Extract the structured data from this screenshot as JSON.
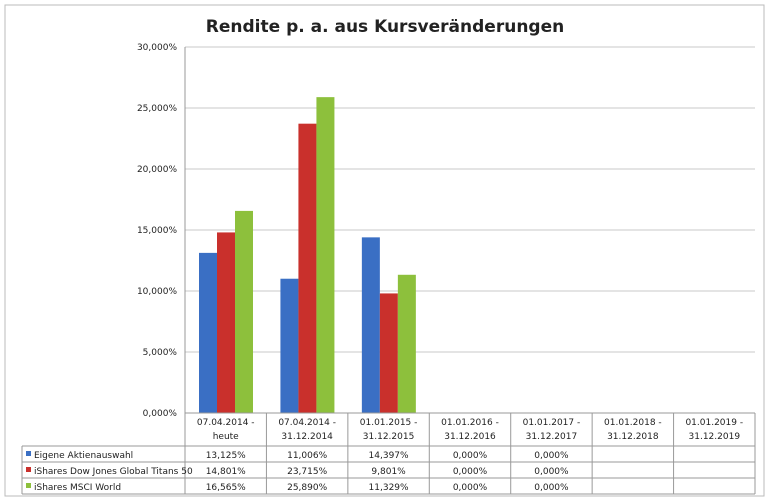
{
  "chart_data": {
    "type": "bar",
    "title": "Rendite p. a. aus Kursveränderungen",
    "categories": [
      [
        "07.04.2014 -",
        "heute"
      ],
      [
        "07.04.2014 -",
        "31.12.2014"
      ],
      [
        "01.01.2015 -",
        "31.12.2015"
      ],
      [
        "01.01.2016 -",
        "31.12.2016"
      ],
      [
        "01.01.2017 -",
        "31.12.2017"
      ],
      [
        "01.01.2018 -",
        "31.12.2018"
      ],
      [
        "01.01.2019 -",
        "31.12.2019"
      ]
    ],
    "series": [
      {
        "name": "Eigene Aktienauswahl",
        "color": "#3a6fc4",
        "values": [
          13.125,
          11.006,
          14.397,
          0,
          0,
          null,
          null
        ],
        "labels": [
          "13,125%",
          "11,006%",
          "14,397%",
          "0,000%",
          "0,000%",
          "",
          ""
        ]
      },
      {
        "name": "iShares Dow Jones Global Titans 50",
        "color": "#c9302c",
        "values": [
          14.801,
          23.715,
          9.801,
          0,
          0,
          null,
          null
        ],
        "labels": [
          "14,801%",
          "23,715%",
          "9,801%",
          "0,000%",
          "0,000%",
          "",
          ""
        ]
      },
      {
        "name": "iShares MSCI World",
        "color": "#8dc03c",
        "values": [
          16.565,
          25.89,
          11.329,
          0,
          0,
          null,
          null
        ],
        "labels": [
          "16,565%",
          "25,890%",
          "11,329%",
          "0,000%",
          "0,000%",
          "",
          ""
        ]
      }
    ],
    "ylim": [
      0,
      30
    ],
    "yticks": [
      0,
      5,
      10,
      15,
      20,
      25,
      30
    ],
    "ytick_labels": [
      "0,000%",
      "5,000%",
      "10,000%",
      "15,000%",
      "20,000%",
      "25,000%",
      "30,000%"
    ],
    "grid": true,
    "legend": "data-table-bottom"
  }
}
